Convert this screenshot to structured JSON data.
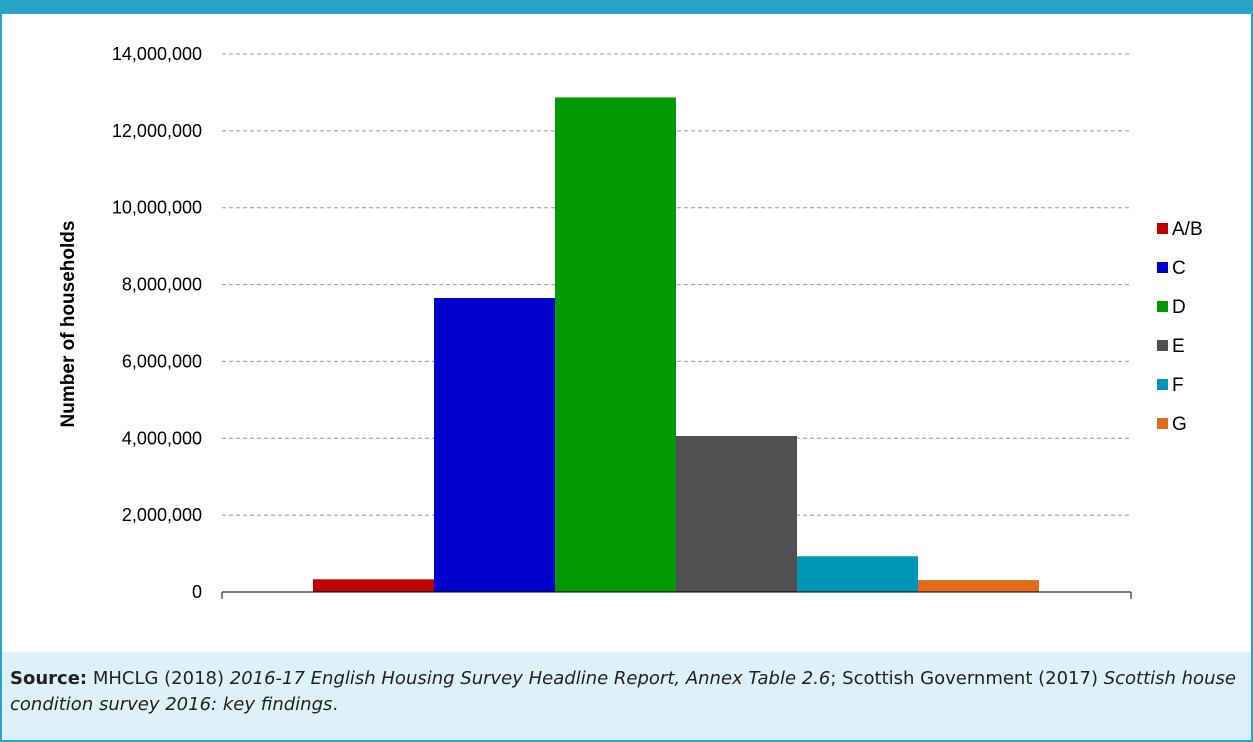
{
  "chart_data": {
    "type": "bar",
    "title": "",
    "xlabel": "",
    "ylabel": "Number of households",
    "ylim": [
      0,
      14000000
    ],
    "yticks": [
      0,
      2000000,
      4000000,
      6000000,
      8000000,
      10000000,
      12000000,
      14000000
    ],
    "ytick_labels": [
      "0",
      "2,000,000",
      "4,000,000",
      "6,000,000",
      "8,000,000",
      "10,000,000",
      "12,000,000",
      "14,000,000"
    ],
    "grid": true,
    "legend_position": "right",
    "series": [
      {
        "name": "A/B",
        "value": 330000,
        "color": "#c00000"
      },
      {
        "name": "C",
        "value": 7650000,
        "color": "#0000cc"
      },
      {
        "name": "D",
        "value": 12870000,
        "color": "#009900"
      },
      {
        "name": "E",
        "value": 4060000,
        "color": "#505050"
      },
      {
        "name": "F",
        "value": 930000,
        "color": "#0096b8"
      },
      {
        "name": "G",
        "value": 310000,
        "color": "#e36c1c"
      }
    ]
  },
  "source": {
    "label": "Source:",
    "t1": " MHCLG (2018) ",
    "i1": "2016-17 English Housing Survey Headline Report, Annex Table 2.6",
    "t2": "; Scottish Government (2017) ",
    "i2": "Scottish house condition survey 2016: key findings",
    "t3": "."
  },
  "colors": {
    "frame": "#2aa3c9",
    "source_bg": "#dcf1f8",
    "grid": "#999999"
  }
}
